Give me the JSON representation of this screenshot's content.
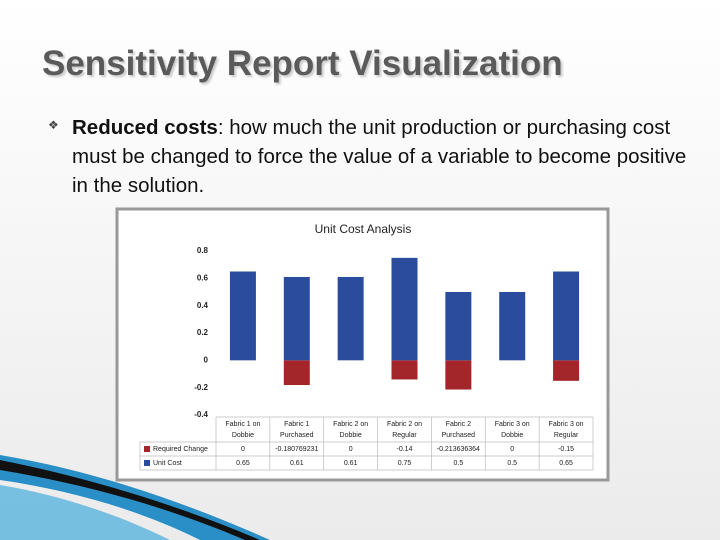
{
  "slide": {
    "title": "Sensitivity Report Visualization",
    "bullet": {
      "term": "Reduced costs",
      "text": ": how much the unit production or purchasing cost must be changed to force the value of a variable to become positive in the solution."
    }
  },
  "chart_data": {
    "type": "bar",
    "title": "Unit Cost Analysis",
    "categories": [
      "Fabric 1 on Dobbie",
      "Fabric 1 Purchased",
      "Fabric 2 on Dobbie",
      "Fabric 2 on Regular",
      "Fabric 2 Purchased",
      "Fabric 3 on Dobbie",
      "Fabric 3 on Regular"
    ],
    "series": [
      {
        "name": "Required Change",
        "color": "#a3262a",
        "values": [
          0,
          -0.180769231,
          0,
          -0.14,
          -0.213636364,
          0,
          -0.15
        ]
      },
      {
        "name": "Unit Cost",
        "color": "#2b4c9c",
        "values": [
          0.65,
          0.61,
          0.61,
          0.75,
          0.5,
          0.5,
          0.65
        ]
      }
    ],
    "ylim": [
      -0.4,
      0.8
    ],
    "yticks": [
      -0.4,
      -0.2,
      0,
      0.2,
      0.4,
      0.6,
      0.8
    ],
    "grid": false
  }
}
